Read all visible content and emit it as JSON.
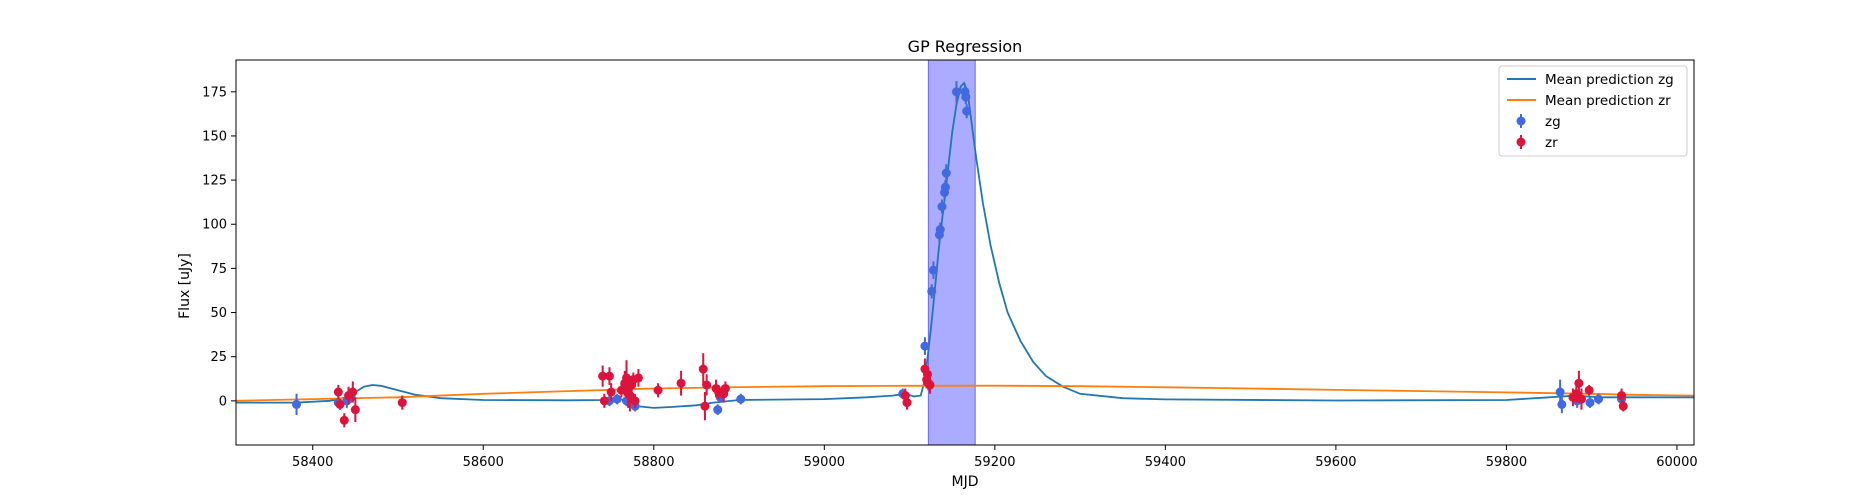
{
  "chart_data": {
    "type": "scatter",
    "title": "GP Regression",
    "xlabel": "MJD",
    "ylabel": "Flux [uJy]",
    "xlim": [
      58310,
      60020
    ],
    "ylim": [
      -25,
      193
    ],
    "xticks": [
      58400,
      58600,
      58800,
      59000,
      59200,
      59400,
      59600,
      59800,
      60000
    ],
    "yticks": [
      0,
      25,
      50,
      75,
      100,
      125,
      150,
      175
    ],
    "legend_position": "upper right",
    "shaded_region": {
      "x": [
        59122,
        59177
      ],
      "color": "#0000ff",
      "opacity": 0.33
    },
    "mean_predictions": [
      {
        "name": "Mean prediction zg",
        "color": "#1f77b4",
        "points": [
          [
            58310,
            -1
          ],
          [
            58380,
            -1
          ],
          [
            58420,
            0
          ],
          [
            58440,
            2
          ],
          [
            58450,
            5
          ],
          [
            58460,
            8
          ],
          [
            58470,
            9
          ],
          [
            58480,
            8.5
          ],
          [
            58500,
            6
          ],
          [
            58520,
            3.5
          ],
          [
            58550,
            1.5
          ],
          [
            58600,
            0.5
          ],
          [
            58700,
            0.3
          ],
          [
            58740,
            0.5
          ],
          [
            58760,
            1
          ],
          [
            58770,
            0
          ],
          [
            58780,
            -3
          ],
          [
            58800,
            -4
          ],
          [
            58820,
            -3.5
          ],
          [
            58850,
            -2.5
          ],
          [
            58870,
            -1
          ],
          [
            58900,
            0.5
          ],
          [
            59000,
            1
          ],
          [
            59050,
            2
          ],
          [
            59080,
            3
          ],
          [
            59095,
            4
          ],
          [
            59105,
            2.5
          ],
          [
            59113,
            3
          ],
          [
            59118,
            12
          ],
          [
            59122,
            28
          ],
          [
            59126,
            45
          ],
          [
            59130,
            65
          ],
          [
            59134,
            85
          ],
          [
            59138,
            102
          ],
          [
            59142,
            118
          ],
          [
            59146,
            135
          ],
          [
            59150,
            152
          ],
          [
            59155,
            168
          ],
          [
            59160,
            178
          ],
          [
            59164,
            180
          ],
          [
            59168,
            175
          ],
          [
            59172,
            160
          ],
          [
            59178,
            138
          ],
          [
            59186,
            112
          ],
          [
            59195,
            88
          ],
          [
            59205,
            67
          ],
          [
            59215,
            50
          ],
          [
            59230,
            34
          ],
          [
            59245,
            22
          ],
          [
            59260,
            14
          ],
          [
            59280,
            8
          ],
          [
            59300,
            4
          ],
          [
            59350,
            1.5
          ],
          [
            59400,
            0.8
          ],
          [
            59600,
            0.2
          ],
          [
            59800,
            0.5
          ],
          [
            59850,
            2
          ],
          [
            59880,
            3
          ],
          [
            59910,
            2
          ],
          [
            59940,
            2
          ],
          [
            60020,
            2
          ]
        ]
      },
      {
        "name": "Mean prediction zr",
        "color": "#ff7f0e",
        "points": [
          [
            58310,
            0
          ],
          [
            58400,
            1
          ],
          [
            58500,
            2
          ],
          [
            58600,
            4
          ],
          [
            58700,
            5.5
          ],
          [
            58800,
            7
          ],
          [
            58900,
            7.8
          ],
          [
            59000,
            8.3
          ],
          [
            59100,
            8.5
          ],
          [
            59200,
            8.6
          ],
          [
            59300,
            8.3
          ],
          [
            59400,
            7.7
          ],
          [
            59500,
            7
          ],
          [
            59600,
            6.2
          ],
          [
            59700,
            5.5
          ],
          [
            59800,
            4.8
          ],
          [
            59900,
            4
          ],
          [
            59940,
            3.5
          ],
          [
            60020,
            3
          ]
        ]
      }
    ],
    "series": [
      {
        "name": "zg",
        "color": "#4169e1",
        "points": [
          [
            58381,
            -2,
            6
          ],
          [
            58430,
            -1,
            3
          ],
          [
            58440,
            0,
            4
          ],
          [
            58445,
            2,
            3
          ],
          [
            58748,
            0,
            3
          ],
          [
            58757,
            1,
            3
          ],
          [
            58768,
            0,
            3
          ],
          [
            58778,
            -3,
            3
          ],
          [
            58875,
            -5,
            3
          ],
          [
            58878,
            2,
            3
          ],
          [
            58902,
            1,
            3
          ],
          [
            59092,
            4,
            3
          ],
          [
            59118,
            31,
            5
          ],
          [
            59126,
            62,
            4
          ],
          [
            59128,
            74,
            5
          ],
          [
            59135,
            94,
            4
          ],
          [
            59136,
            97,
            4
          ],
          [
            59138,
            110,
            4
          ],
          [
            59141,
            118,
            4
          ],
          [
            59142,
            121,
            4
          ],
          [
            59143,
            129,
            5
          ],
          [
            59155,
            175,
            6
          ],
          [
            59165,
            175,
            4
          ],
          [
            59166,
            172,
            4
          ],
          [
            59167,
            164,
            4
          ],
          [
            59863,
            5,
            7
          ],
          [
            59865,
            -2,
            5
          ],
          [
            59883,
            0,
            4
          ],
          [
            59898,
            -1,
            3
          ],
          [
            59908,
            1,
            3
          ],
          [
            59935,
            1,
            3
          ]
        ]
      },
      {
        "name": "zr",
        "color": "#dc143c",
        "points": [
          [
            58430,
            5,
            4
          ],
          [
            58432,
            -2,
            3
          ],
          [
            58437,
            -11,
            4
          ],
          [
            58442,
            3,
            5
          ],
          [
            58447,
            5,
            6
          ],
          [
            58450,
            -5,
            7
          ],
          [
            58505,
            -1,
            4
          ],
          [
            58740,
            14,
            6
          ],
          [
            58742,
            0,
            4
          ],
          [
            58748,
            14,
            5
          ],
          [
            58750,
            5,
            5
          ],
          [
            58762,
            6,
            4
          ],
          [
            58766,
            10,
            7
          ],
          [
            58768,
            13,
            10
          ],
          [
            58770,
            4,
            8
          ],
          [
            58772,
            3,
            9
          ],
          [
            58774,
            9,
            5
          ],
          [
            58776,
            12,
            4
          ],
          [
            58778,
            0,
            4
          ],
          [
            58782,
            13,
            5
          ],
          [
            58805,
            6,
            4
          ],
          [
            58832,
            10,
            7
          ],
          [
            58858,
            18,
            9
          ],
          [
            58860,
            -3,
            8
          ],
          [
            58862,
            9,
            6
          ],
          [
            58873,
            7,
            5
          ],
          [
            58876,
            5,
            4
          ],
          [
            58882,
            4,
            5
          ],
          [
            58884,
            7,
            4
          ],
          [
            59095,
            3,
            4
          ],
          [
            59097,
            -1,
            4
          ],
          [
            59118,
            18,
            6
          ],
          [
            59120,
            12,
            5
          ],
          [
            59121,
            15,
            4
          ],
          [
            59122,
            10,
            4
          ],
          [
            59124,
            9,
            5
          ],
          [
            59878,
            2,
            5
          ],
          [
            59882,
            4,
            5
          ],
          [
            59885,
            10,
            7
          ],
          [
            59888,
            1,
            6
          ],
          [
            59897,
            6,
            3
          ],
          [
            59935,
            3,
            4
          ],
          [
            59937,
            -3,
            3
          ]
        ]
      }
    ]
  }
}
